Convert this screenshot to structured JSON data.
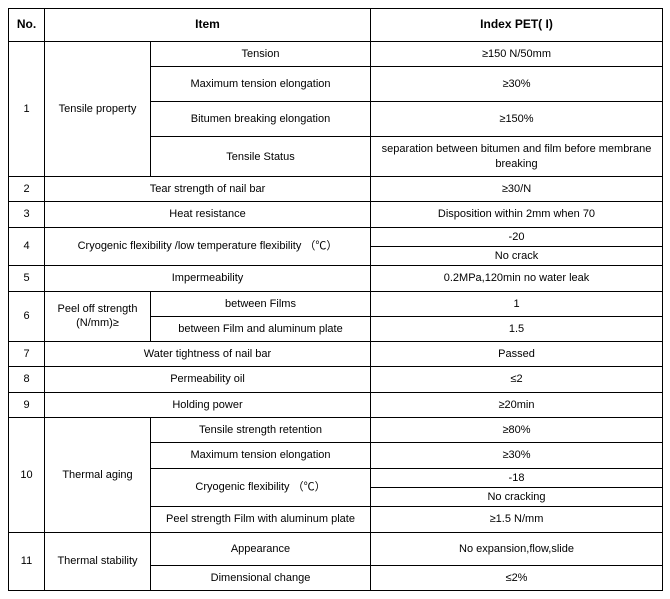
{
  "headers": {
    "no": "No.",
    "item": "Item",
    "index": "Index   PET( I)"
  },
  "r1": {
    "no": "1",
    "label": "Tensile property",
    "sub1": "Tension",
    "val1": "≥150 N/50mm",
    "sub2": "Maximum tension elongation",
    "val2": "≥30%",
    "sub3": "Bitumen breaking elongation",
    "val3": "≥150%",
    "sub4": "Tensile Status",
    "val4": "separation between bitumen and  film before membrane breaking"
  },
  "r2": {
    "no": "2",
    "item": "Tear strength of nail bar",
    "val": "≥30/N"
  },
  "r3": {
    "no": "3",
    "item": "Heat resistance",
    "val": "Disposition within 2mm when 70"
  },
  "r4": {
    "no": "4",
    "item": "Cryogenic flexibility /low temperature flexibility （℃）",
    "val1": "-20",
    "val2": "No crack"
  },
  "r5": {
    "no": "5",
    "item": "Impermeability",
    "val": "0.2MPa,120min  no water leak"
  },
  "r6": {
    "no": "6",
    "label": "Peel off strength (N/mm)≥",
    "sub1": "between Films",
    "val1": "1",
    "sub2": "between Film and aluminum plate",
    "val2": "1.5"
  },
  "r7": {
    "no": "7",
    "item": "Water tightness of nail bar",
    "val": "Passed"
  },
  "r8": {
    "no": "8",
    "item": "Permeability oil",
    "val": "≤2"
  },
  "r9": {
    "no": "9",
    "item": "Holding power",
    "val": "≥20min"
  },
  "r10": {
    "no": "10",
    "label": "Thermal aging",
    "sub1": "Tensile strength retention",
    "val1": "≥80%",
    "sub2": "Maximum tension elongation",
    "val2": "≥30%",
    "sub3": "Cryogenic flexibility （℃）",
    "val3a": "-18",
    "val3b": "No cracking",
    "sub4": "Peel strength  Film with aluminum plate",
    "val4": "≥1.5 N/mm"
  },
  "r11": {
    "no": "11",
    "label": "Thermal stability",
    "sub1": "Appearance",
    "val1": "No expansion,flow,slide",
    "sub2": "Dimensional change",
    "val2": "≤2%"
  }
}
